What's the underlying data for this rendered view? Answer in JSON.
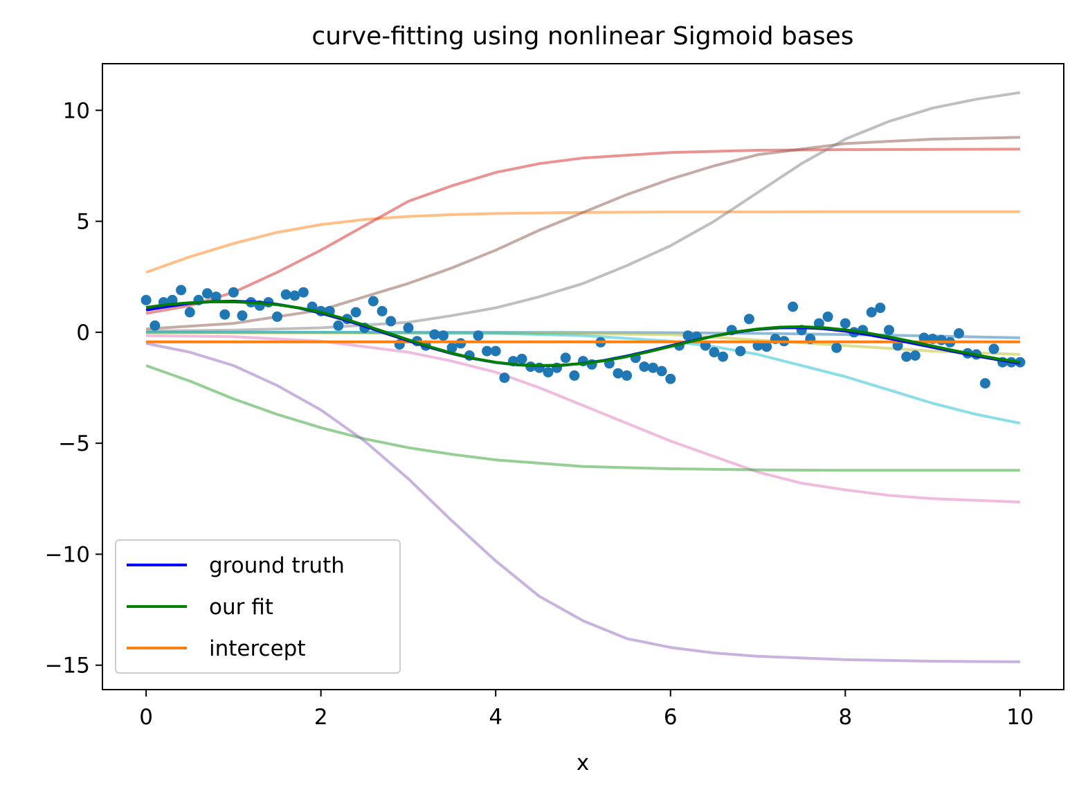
{
  "chart_data": {
    "type": "line",
    "title": "curve-fitting using nonlinear Sigmoid bases",
    "xlabel": "x",
    "ylabel": "",
    "xlim": [
      -0.5,
      10.5
    ],
    "ylim": [
      -16.1,
      12.1
    ],
    "x_ticks": [
      0,
      2,
      4,
      6,
      8,
      10
    ],
    "x_tick_labels": [
      "0",
      "2",
      "4",
      "6",
      "8",
      "10"
    ],
    "y_ticks": [
      10,
      5,
      0,
      -5,
      -10,
      -15
    ],
    "y_tick_labels": [
      "10",
      "5",
      "0",
      "−5",
      "−10",
      "−15"
    ],
    "grid": false,
    "legend_position": "lower-left",
    "legend": [
      {
        "label": "ground truth",
        "color": "#0000ff"
      },
      {
        "label": "our fit",
        "color": "#008000"
      },
      {
        "label": "intercept",
        "color": "#ff7f0e"
      }
    ],
    "basis_curves": [
      {
        "color": "#ff7f0e",
        "x": [
          0,
          0.5,
          1,
          1.5,
          2,
          2.5,
          3,
          3.5,
          4,
          5,
          6,
          7,
          8,
          9,
          10
        ],
        "y": [
          2.7,
          3.4,
          4.0,
          4.5,
          4.85,
          5.08,
          5.22,
          5.3,
          5.35,
          5.4,
          5.42,
          5.42,
          5.43,
          5.43,
          5.43
        ]
      },
      {
        "color": "#d62728",
        "x": [
          0,
          0.5,
          1,
          1.5,
          2,
          2.5,
          3,
          3.5,
          4,
          4.5,
          5,
          6,
          7,
          8,
          9,
          10
        ],
        "y": [
          0.85,
          1.2,
          1.8,
          2.7,
          3.7,
          4.8,
          5.9,
          6.6,
          7.2,
          7.6,
          7.85,
          8.1,
          8.2,
          8.23,
          8.24,
          8.25
        ]
      },
      {
        "color": "#8c564b",
        "x": [
          0,
          1,
          2,
          2.5,
          3,
          3.5,
          4,
          4.5,
          5,
          5.5,
          6,
          6.5,
          7,
          8,
          9,
          10
        ],
        "y": [
          0.15,
          0.4,
          1.0,
          1.6,
          2.2,
          2.9,
          3.7,
          4.6,
          5.4,
          6.2,
          6.9,
          7.5,
          8.0,
          8.5,
          8.7,
          8.78
        ]
      },
      {
        "color": "#7f7f7f",
        "x": [
          0,
          1,
          2,
          3,
          3.5,
          4,
          4.5,
          5,
          5.5,
          6,
          6.5,
          7,
          7.5,
          8,
          8.5,
          9,
          9.5,
          10
        ],
        "y": [
          0.05,
          0.1,
          0.2,
          0.45,
          0.75,
          1.1,
          1.6,
          2.2,
          3.0,
          3.9,
          5.0,
          6.3,
          7.6,
          8.7,
          9.5,
          10.1,
          10.5,
          10.8
        ]
      },
      {
        "color": "#1f77b4",
        "x": [
          0,
          2,
          4,
          6,
          7,
          8,
          9,
          10
        ],
        "y": [
          0.0,
          0.0,
          0.0,
          -0.02,
          -0.05,
          -0.1,
          -0.17,
          -0.25
        ]
      },
      {
        "color": "#bcbd22",
        "x": [
          0,
          2,
          4,
          6,
          7,
          8,
          9,
          10
        ],
        "y": [
          -0.02,
          -0.03,
          -0.04,
          -0.1,
          -0.35,
          -0.6,
          -0.85,
          -1.0
        ]
      },
      {
        "color": "#17becf",
        "x": [
          0,
          2,
          4,
          5,
          6,
          6.5,
          7,
          7.5,
          8,
          8.5,
          9,
          9.5,
          10
        ],
        "y": [
          0.0,
          0.0,
          -0.05,
          -0.15,
          -0.4,
          -0.65,
          -1.0,
          -1.5,
          -2.0,
          -2.6,
          -3.2,
          -3.7,
          -4.1
        ]
      },
      {
        "color": "#e377c2",
        "x": [
          0,
          1,
          2,
          3,
          3.5,
          4,
          4.5,
          5,
          5.5,
          6,
          6.5,
          7,
          7.5,
          8,
          8.5,
          9,
          10
        ],
        "y": [
          -0.15,
          -0.2,
          -0.4,
          -0.9,
          -1.3,
          -1.8,
          -2.5,
          -3.3,
          -4.1,
          -4.9,
          -5.6,
          -6.3,
          -6.8,
          -7.1,
          -7.35,
          -7.5,
          -7.65
        ]
      },
      {
        "color": "#2ca02c",
        "x": [
          0,
          0.5,
          1,
          1.5,
          2,
          2.5,
          3,
          3.5,
          4,
          4.5,
          5,
          6,
          7,
          8,
          10
        ],
        "y": [
          -1.5,
          -2.2,
          -3.0,
          -3.7,
          -4.3,
          -4.8,
          -5.2,
          -5.5,
          -5.75,
          -5.9,
          -6.05,
          -6.15,
          -6.2,
          -6.22,
          -6.22
        ]
      },
      {
        "color": "#9467bd",
        "x": [
          0,
          0.5,
          1,
          1.5,
          2,
          2.5,
          3,
          3.5,
          4,
          4.5,
          5,
          5.5,
          6,
          6.5,
          7,
          8,
          9,
          10
        ],
        "y": [
          -0.5,
          -0.9,
          -1.5,
          -2.4,
          -3.5,
          -4.9,
          -6.6,
          -8.5,
          -10.3,
          -11.9,
          -13.0,
          -13.8,
          -14.2,
          -14.45,
          -14.6,
          -14.75,
          -14.82,
          -14.85
        ]
      }
    ],
    "series": [
      {
        "name": "ground truth",
        "color": "#0000ff",
        "x": [
          0,
          0.25,
          0.5,
          0.75,
          1,
          1.25,
          1.5,
          1.75,
          2,
          2.25,
          2.5,
          2.75,
          3,
          3.25,
          3.5,
          3.75,
          4,
          4.25,
          4.5,
          4.75,
          5,
          5.25,
          5.5,
          5.75,
          6,
          6.25,
          6.5,
          6.75,
          7,
          7.25,
          7.5,
          7.75,
          8,
          8.25,
          8.5,
          8.75,
          9,
          9.25,
          9.5,
          9.75,
          10
        ],
        "y": [
          1.0,
          1.16,
          1.3,
          1.38,
          1.4,
          1.36,
          1.26,
          1.09,
          0.86,
          0.58,
          0.27,
          -0.06,
          -0.38,
          -0.69,
          -0.96,
          -1.19,
          -1.36,
          -1.47,
          -1.51,
          -1.49,
          -1.4,
          -1.26,
          -1.07,
          -0.85,
          -0.61,
          -0.38,
          -0.17,
          0.0,
          0.13,
          0.2,
          0.21,
          0.16,
          0.05,
          -0.1,
          -0.28,
          -0.48,
          -0.68,
          -0.88,
          -1.07,
          -1.24,
          -1.4
        ]
      },
      {
        "name": "our fit",
        "color": "#008000",
        "x": [
          0,
          0.25,
          0.5,
          0.75,
          1,
          1.25,
          1.5,
          1.75,
          2,
          2.25,
          2.5,
          2.75,
          3,
          3.25,
          3.5,
          3.75,
          4,
          4.25,
          4.5,
          4.75,
          5,
          5.25,
          5.5,
          5.75,
          6,
          6.25,
          6.5,
          6.75,
          7,
          7.25,
          7.5,
          7.75,
          8,
          8.25,
          8.5,
          8.75,
          9,
          9.25,
          9.5,
          9.75,
          10
        ],
        "y": [
          1.12,
          1.25,
          1.33,
          1.37,
          1.37,
          1.33,
          1.24,
          1.1,
          0.9,
          0.63,
          0.32,
          -0.01,
          -0.34,
          -0.66,
          -0.94,
          -1.18,
          -1.35,
          -1.46,
          -1.5,
          -1.48,
          -1.41,
          -1.28,
          -1.1,
          -0.88,
          -0.64,
          -0.4,
          -0.17,
          0.02,
          0.15,
          0.23,
          0.25,
          0.21,
          0.11,
          -0.03,
          -0.21,
          -0.41,
          -0.62,
          -0.83,
          -1.02,
          -1.2,
          -1.35
        ]
      },
      {
        "name": "intercept",
        "color": "#ff7f0e",
        "x": [
          0,
          10
        ],
        "y": [
          -0.43,
          -0.43
        ]
      }
    ],
    "scatter": {
      "color": "#1f77b4",
      "x": [
        0,
        0.1,
        0.2,
        0.3,
        0.4,
        0.5,
        0.6,
        0.7,
        0.8,
        0.9,
        1.0,
        1.1,
        1.2,
        1.3,
        1.4,
        1.5,
        1.6,
        1.7,
        1.8,
        1.9,
        2.0,
        2.1,
        2.2,
        2.3,
        2.4,
        2.5,
        2.6,
        2.7,
        2.8,
        2.9,
        3.0,
        3.1,
        3.2,
        3.3,
        3.4,
        3.5,
        3.6,
        3.7,
        3.8,
        3.9,
        4.0,
        4.1,
        4.2,
        4.3,
        4.4,
        4.5,
        4.6,
        4.7,
        4.8,
        4.9,
        5.0,
        5.1,
        5.2,
        5.3,
        5.4,
        5.5,
        5.6,
        5.7,
        5.8,
        5.9,
        6.0,
        6.1,
        6.2,
        6.3,
        6.4,
        6.5,
        6.6,
        6.7,
        6.8,
        6.9,
        7.0,
        7.1,
        7.2,
        7.3,
        7.4,
        7.5,
        7.6,
        7.7,
        7.8,
        7.9,
        8.0,
        8.1,
        8.2,
        8.3,
        8.4,
        8.5,
        8.6,
        8.7,
        8.8,
        8.9,
        9.0,
        9.1,
        9.2,
        9.3,
        9.4,
        9.5,
        9.6,
        9.7,
        9.8,
        9.9,
        10.0
      ],
      "y": [
        1.45,
        0.3,
        1.35,
        1.45,
        1.9,
        0.9,
        1.45,
        1.75,
        1.6,
        0.8,
        1.8,
        0.75,
        1.35,
        1.2,
        1.35,
        0.7,
        1.7,
        1.65,
        1.8,
        1.15,
        0.95,
        0.95,
        0.3,
        0.6,
        0.9,
        0.2,
        1.4,
        0.95,
        0.5,
        -0.55,
        0.2,
        -0.4,
        -0.6,
        -0.1,
        -0.15,
        -0.7,
        -0.5,
        -1.05,
        -0.15,
        -0.85,
        -0.85,
        -2.05,
        -1.3,
        -1.2,
        -1.55,
        -1.6,
        -1.8,
        -1.6,
        -1.15,
        -1.95,
        -1.3,
        -1.45,
        -0.45,
        -1.4,
        -1.85,
        -1.95,
        -1.15,
        -1.55,
        -1.6,
        -1.75,
        -2.1,
        -0.6,
        -0.15,
        -0.2,
        -0.6,
        -0.9,
        -1.1,
        0.1,
        -0.85,
        0.6,
        -0.6,
        -0.65,
        -0.3,
        -0.4,
        1.15,
        0.1,
        -0.3,
        0.4,
        0.7,
        -0.7,
        0.4,
        0.0,
        0.1,
        0.9,
        1.1,
        0.1,
        -0.6,
        -1.1,
        -1.05,
        -0.25,
        -0.3,
        -0.35,
        -0.45,
        -0.05,
        -0.95,
        -1.0,
        -2.3,
        -0.75,
        -1.35,
        -1.35,
        -1.35
      ]
    }
  }
}
